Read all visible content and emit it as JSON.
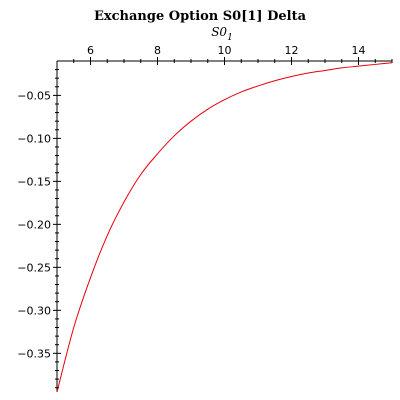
{
  "chart_data": {
    "type": "line",
    "title": "Exchange Option S0[1] Delta",
    "xlabel_main": "S0",
    "xlabel_sub": "1",
    "ylabel": "",
    "xlim": [
      5,
      15
    ],
    "ylim": [
      -0.395,
      -0.01
    ],
    "x_ticks": [
      6,
      8,
      10,
      12,
      14
    ],
    "y_ticks": [
      -0.05,
      -0.1,
      -0.15,
      -0.2,
      -0.25,
      -0.3,
      -0.35
    ],
    "x_tick_labels": [
      "6",
      "8",
      "10",
      "12",
      "14"
    ],
    "y_tick_labels": [
      "-0.05",
      "-0.10",
      "-0.15",
      "-0.20",
      "-0.25",
      "-0.30",
      "-0.35"
    ],
    "grid": false,
    "series": [
      {
        "color": "#e8000b",
        "x": [
          5,
          5.5,
          6,
          6.5,
          7,
          7.5,
          8,
          8.5,
          9,
          9.5,
          10,
          10.5,
          11,
          11.5,
          12,
          12.5,
          13,
          13.5,
          14,
          14.5,
          15
        ],
        "y": [
          -0.395,
          -0.32,
          -0.262,
          -0.213,
          -0.174,
          -0.142,
          -0.118,
          -0.097,
          -0.08,
          -0.066,
          -0.055,
          -0.046,
          -0.039,
          -0.033,
          -0.028,
          -0.024,
          -0.021,
          -0.018,
          -0.016,
          -0.014,
          -0.012
        ]
      }
    ]
  }
}
